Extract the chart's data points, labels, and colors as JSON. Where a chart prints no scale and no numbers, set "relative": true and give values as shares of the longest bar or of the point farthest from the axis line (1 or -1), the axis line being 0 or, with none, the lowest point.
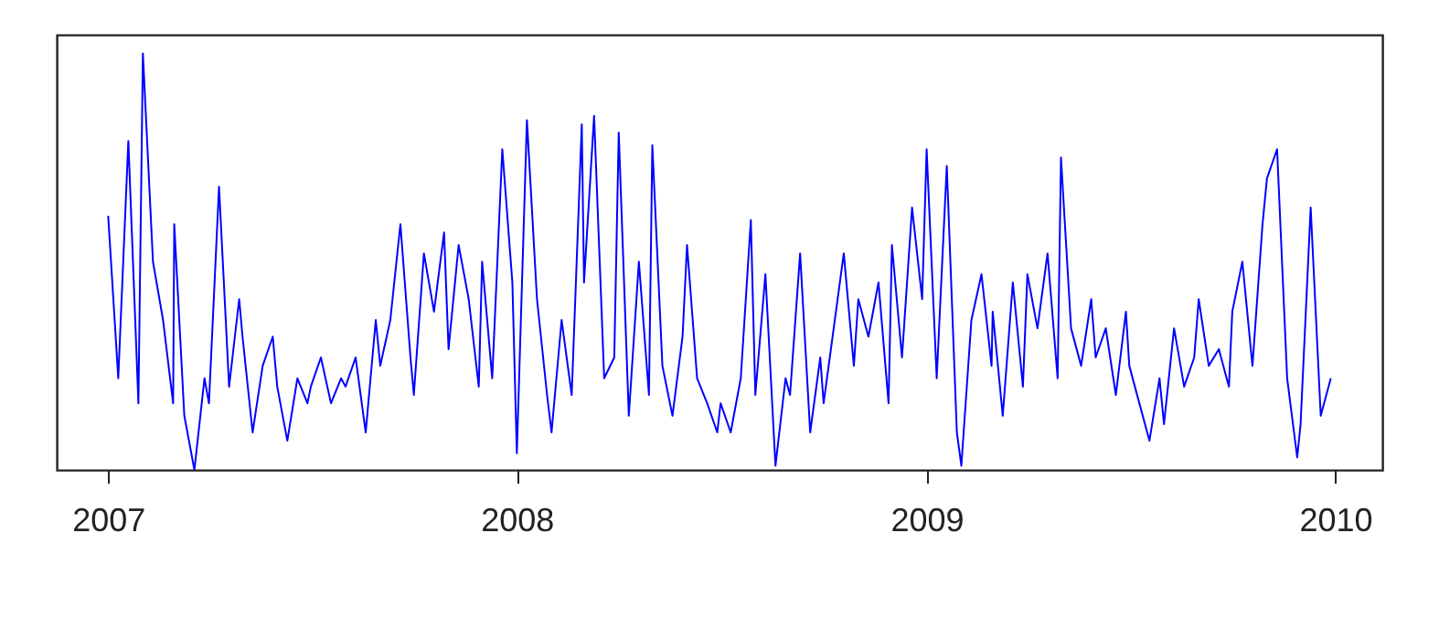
{
  "chart_data": {
    "type": "line",
    "relative": true,
    "x": [
      "2007-01-01",
      "2007-01-10",
      "2007-01-19",
      "2007-01-28",
      "2007-02-01",
      "2007-02-10",
      "2007-02-19",
      "2007-02-28",
      "2007-03-01",
      "2007-03-10",
      "2007-03-19",
      "2007-03-28",
      "2007-04-01",
      "2007-04-10",
      "2007-04-19",
      "2007-04-28",
      "2007-05-01",
      "2007-05-10",
      "2007-05-19",
      "2007-05-28",
      "2007-06-01",
      "2007-06-10",
      "2007-06-19",
      "2007-06-28",
      "2007-07-01",
      "2007-07-10",
      "2007-07-19",
      "2007-07-28",
      "2007-08-01",
      "2007-08-10",
      "2007-08-19",
      "2007-08-28",
      "2007-09-01",
      "2007-09-10",
      "2007-09-19",
      "2007-09-28",
      "2007-10-01",
      "2007-10-10",
      "2007-10-19",
      "2007-10-28",
      "2007-11-01",
      "2007-11-10",
      "2007-11-19",
      "2007-11-28",
      "2007-12-01",
      "2007-12-10",
      "2007-12-19",
      "2007-12-28",
      "2008-01-01",
      "2008-01-10",
      "2008-01-19",
      "2008-01-28",
      "2008-02-01",
      "2008-02-10",
      "2008-02-19",
      "2008-02-28",
      "2008-03-01",
      "2008-03-10",
      "2008-03-19",
      "2008-03-28",
      "2008-04-01",
      "2008-04-10",
      "2008-04-19",
      "2008-04-28",
      "2008-05-01",
      "2008-05-10",
      "2008-05-19",
      "2008-05-28",
      "2008-06-01",
      "2008-06-10",
      "2008-06-19",
      "2008-06-28",
      "2008-07-01",
      "2008-07-10",
      "2008-07-19",
      "2008-07-28",
      "2008-08-01",
      "2008-08-10",
      "2008-08-19",
      "2008-08-28",
      "2008-09-01",
      "2008-09-10",
      "2008-09-19",
      "2008-09-28",
      "2008-10-01",
      "2008-10-10",
      "2008-10-19",
      "2008-10-28",
      "2008-11-01",
      "2008-11-10",
      "2008-11-19",
      "2008-11-28",
      "2008-12-01",
      "2008-12-10",
      "2008-12-19",
      "2008-12-28",
      "2009-01-01",
      "2009-01-10",
      "2009-01-19",
      "2009-01-28",
      "2009-02-01",
      "2009-02-10",
      "2009-02-19",
      "2009-02-28",
      "2009-03-01",
      "2009-03-10",
      "2009-03-19",
      "2009-03-28",
      "2009-04-01",
      "2009-04-10",
      "2009-04-19",
      "2009-04-28",
      "2009-05-01",
      "2009-05-10",
      "2009-05-19",
      "2009-05-28",
      "2009-06-01",
      "2009-06-10",
      "2009-06-19",
      "2009-06-28",
      "2009-07-01",
      "2009-07-10",
      "2009-07-19",
      "2009-07-28",
      "2009-08-01",
      "2009-08-10",
      "2009-08-19",
      "2009-08-28",
      "2009-09-01",
      "2009-09-10",
      "2009-09-19",
      "2009-09-28",
      "2009-10-01",
      "2009-10-10",
      "2009-10-19",
      "2009-10-28",
      "2009-11-01",
      "2009-11-10",
      "2009-11-19",
      "2009-11-28",
      "2009-12-01",
      "2009-12-10",
      "2009-12-19",
      "2009-12-28"
    ],
    "series": [
      {
        "color": "#0000ff",
        "values": [
          0.61,
          0.22,
          0.79,
          0.16,
          1.0,
          0.5,
          0.36,
          0.16,
          0.59,
          0.13,
          0.0,
          0.22,
          0.16,
          0.68,
          0.2,
          0.41,
          0.32,
          0.09,
          0.25,
          0.32,
          0.2,
          0.07,
          0.22,
          0.16,
          0.2,
          0.27,
          0.16,
          0.22,
          0.2,
          0.27,
          0.09,
          0.36,
          0.25,
          0.36,
          0.59,
          0.27,
          0.18,
          0.52,
          0.38,
          0.57,
          0.29,
          0.54,
          0.41,
          0.2,
          0.5,
          0.22,
          0.77,
          0.45,
          0.04,
          0.84,
          0.41,
          0.18,
          0.09,
          0.36,
          0.18,
          0.83,
          0.45,
          0.85,
          0.22,
          0.27,
          0.81,
          0.13,
          0.5,
          0.18,
          0.78,
          0.25,
          0.13,
          0.32,
          0.54,
          0.22,
          0.16,
          0.09,
          0.16,
          0.09,
          0.22,
          0.6,
          0.18,
          0.47,
          0.01,
          0.22,
          0.18,
          0.52,
          0.09,
          0.27,
          0.16,
          0.34,
          0.52,
          0.25,
          0.41,
          0.32,
          0.45,
          0.16,
          0.54,
          0.27,
          0.63,
          0.41,
          0.77,
          0.22,
          0.73,
          0.09,
          0.01,
          0.36,
          0.47,
          0.25,
          0.38,
          0.13,
          0.45,
          0.2,
          0.47,
          0.34,
          0.52,
          0.22,
          0.75,
          0.34,
          0.25,
          0.41,
          0.27,
          0.34,
          0.18,
          0.38,
          0.25,
          0.16,
          0.07,
          0.22,
          0.11,
          0.34,
          0.2,
          0.27,
          0.41,
          0.25,
          0.29,
          0.2,
          0.38,
          0.5,
          0.25,
          0.59,
          0.7,
          0.77,
          0.22,
          0.03,
          0.11,
          0.63,
          0.13,
          0.22
        ]
      }
    ],
    "xlim": [
      "2006-11-16",
      "2010-02-12"
    ],
    "xticks": [
      "2007",
      "2008",
      "2009",
      "2010"
    ]
  }
}
